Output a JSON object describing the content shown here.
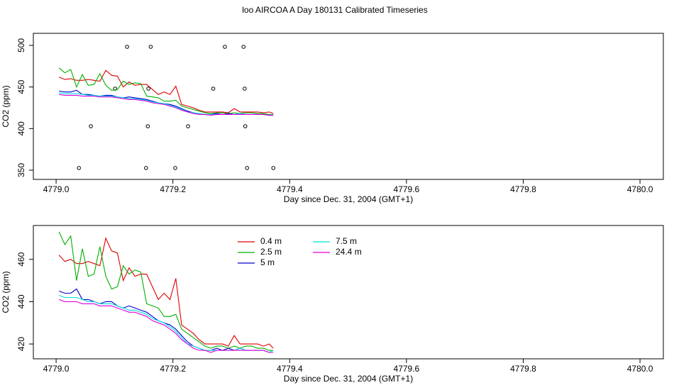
{
  "title": "loo AIRCOA A  Day 180131  Calibrated Timeseries",
  "chart_data": [
    {
      "type": "line",
      "xlabel": "Day since Dec. 31, 2004 (GMT+1)",
      "ylabel": "CO2 (ppm)",
      "xlim": [
        4778.961,
        4780.04
      ],
      "ylim": [
        338.9,
        514.5
      ],
      "xticks": [
        {
          "value": 4779.0,
          "label": "4779.0"
        },
        {
          "value": 4779.2,
          "label": "4779.2"
        },
        {
          "value": 4779.4,
          "label": "4779.4"
        },
        {
          "value": 4779.6,
          "label": "4779.6"
        },
        {
          "value": 4779.8,
          "label": "4779.8"
        },
        {
          "value": 4780.0,
          "label": "4780.0"
        }
      ],
      "yticks": [
        350,
        400,
        450,
        500
      ],
      "x": [
        4779.005,
        4779.015,
        4779.025,
        4779.035,
        4779.045,
        4779.055,
        4779.065,
        4779.075,
        4779.085,
        4779.095,
        4779.105,
        4779.115,
        4779.125,
        4779.135,
        4779.145,
        4779.155,
        4779.165,
        4779.175,
        4779.185,
        4779.195,
        4779.205,
        4779.215,
        4779.225,
        4779.235,
        4779.245,
        4779.255,
        4779.265,
        4779.275,
        4779.285,
        4779.295,
        4779.305,
        4779.315,
        4779.325,
        4779.335,
        4779.345,
        4779.355,
        4779.365,
        4779.372
      ],
      "series": [
        {
          "color": "#e00000",
          "values": [
            462,
            459,
            460,
            458,
            458,
            459,
            458,
            457,
            470,
            464,
            463,
            450,
            456,
            452,
            453,
            453,
            447,
            441,
            444,
            441,
            451,
            429,
            427,
            425,
            422,
            420,
            420,
            420,
            420,
            419,
            424,
            420,
            420,
            420,
            420,
            419,
            420,
            418
          ]
        },
        {
          "color": "#00b000",
          "values": [
            473,
            467,
            471,
            450,
            465,
            452,
            453,
            466,
            452,
            446,
            447,
            457,
            453,
            455,
            454,
            439,
            438,
            437,
            433,
            433,
            434,
            427,
            425,
            423,
            421,
            419,
            418,
            419,
            419,
            418,
            419,
            418,
            419,
            419,
            418,
            418,
            417,
            417
          ]
        },
        {
          "color": "#0000cc",
          "values": [
            445,
            444,
            444,
            446,
            441,
            441,
            440,
            439,
            440,
            440,
            438,
            437,
            438,
            437,
            436,
            435,
            433,
            431,
            430,
            429,
            427,
            424,
            421,
            419,
            418,
            417,
            417,
            418,
            417,
            418,
            417,
            418,
            417,
            417,
            417,
            417,
            416,
            416
          ]
        },
        {
          "color": "#00e0e0",
          "values": [
            443,
            442,
            442,
            442,
            441,
            440,
            440,
            439,
            439,
            439,
            438,
            437,
            436,
            436,
            435,
            434,
            432,
            431,
            430,
            428,
            426,
            423,
            420,
            419,
            418,
            417,
            417,
            417,
            417,
            417,
            417,
            418,
            417,
            417,
            417,
            417,
            416,
            417
          ]
        },
        {
          "color": "#e000e0",
          "values": [
            441,
            440,
            440,
            440,
            439,
            439,
            439,
            438,
            438,
            438,
            437,
            436,
            435,
            435,
            434,
            433,
            431,
            430,
            429,
            427,
            425,
            422,
            420,
            418,
            417,
            417,
            416,
            417,
            417,
            417,
            417,
            417,
            417,
            417,
            417,
            417,
            416,
            416
          ]
        }
      ],
      "points": {
        "x": [
          4779.039,
          4779.0595,
          4779.101,
          4779.1215,
          4779.154,
          4779.157,
          4779.158,
          4779.162,
          4779.204,
          4779.226,
          4779.269,
          4779.289,
          4779.321,
          4779.323,
          4779.324,
          4779.327,
          4779.372
        ],
        "y": [
          352.6,
          402.8,
          448,
          498.3,
          352.6,
          402.8,
          448,
          498.3,
          352.6,
          402.8,
          448,
          498.3,
          498.3,
          448,
          402.8,
          352.6,
          352.6
        ]
      }
    },
    {
      "type": "line",
      "xlabel": "Day since Dec. 31, 2004 (GMT+1)",
      "ylabel": "CO2 (ppm)",
      "xlim": [
        4778.961,
        4780.04
      ],
      "ylim": [
        413,
        476
      ],
      "xticks": [
        {
          "value": 4779.0,
          "label": "4779.0"
        },
        {
          "value": 4779.2,
          "label": "4779.2"
        },
        {
          "value": 4779.4,
          "label": "4779.4"
        },
        {
          "value": 4779.6,
          "label": "4779.6"
        },
        {
          "value": 4779.8,
          "label": "4779.8"
        },
        {
          "value": 4780.0,
          "label": "4780.0"
        }
      ],
      "yticks": [
        420,
        440,
        460
      ],
      "legend": "top-left",
      "x": [
        4779.005,
        4779.015,
        4779.025,
        4779.035,
        4779.045,
        4779.055,
        4779.065,
        4779.075,
        4779.085,
        4779.095,
        4779.105,
        4779.115,
        4779.125,
        4779.135,
        4779.145,
        4779.155,
        4779.165,
        4779.175,
        4779.185,
        4779.195,
        4779.205,
        4779.215,
        4779.225,
        4779.235,
        4779.245,
        4779.255,
        4779.265,
        4779.275,
        4779.285,
        4779.295,
        4779.305,
        4779.315,
        4779.325,
        4779.335,
        4779.345,
        4779.355,
        4779.365,
        4779.372
      ],
      "series": [
        {
          "name": "0.4 m",
          "color": "#e00000",
          "values": [
            462,
            459,
            460,
            458,
            458,
            459,
            458,
            457,
            470,
            464,
            463,
            450,
            456,
            452,
            453,
            453,
            447,
            441,
            444,
            441,
            451,
            429,
            427,
            425,
            422,
            420,
            420,
            420,
            420,
            419,
            424,
            420,
            420,
            420,
            420,
            419,
            420,
            418
          ]
        },
        {
          "name": "2.5 m",
          "color": "#00b000",
          "values": [
            473,
            467,
            471,
            450,
            465,
            452,
            453,
            466,
            452,
            446,
            447,
            457,
            453,
            455,
            454,
            439,
            438,
            437,
            433,
            433,
            434,
            427,
            425,
            423,
            421,
            419,
            418,
            419,
            419,
            418,
            419,
            418,
            419,
            419,
            418,
            418,
            417,
            417
          ]
        },
        {
          "name": "5 m",
          "color": "#0000cc",
          "values": [
            445,
            444,
            444,
            446,
            441,
            441,
            440,
            439,
            440,
            440,
            438,
            437,
            438,
            437,
            436,
            435,
            433,
            431,
            430,
            429,
            427,
            424,
            421,
            419,
            418,
            417,
            417,
            418,
            417,
            418,
            417,
            418,
            417,
            417,
            417,
            417,
            416,
            416
          ]
        },
        {
          "name": "7.5 m",
          "color": "#00e0e0",
          "values": [
            443,
            442,
            442,
            442,
            441,
            440,
            440,
            439,
            439,
            439,
            438,
            437,
            436,
            436,
            435,
            434,
            432,
            431,
            430,
            428,
            426,
            423,
            420,
            419,
            418,
            417,
            417,
            417,
            417,
            417,
            417,
            418,
            417,
            417,
            417,
            417,
            416,
            417
          ]
        },
        {
          "name": "24.4 m",
          "color": "#e000e0",
          "values": [
            441,
            440,
            440,
            440,
            439,
            439,
            439,
            438,
            438,
            438,
            437,
            436,
            435,
            435,
            434,
            433,
            431,
            430,
            429,
            427,
            425,
            422,
            420,
            418,
            417,
            417,
            416,
            417,
            417,
            417,
            417,
            417,
            417,
            417,
            417,
            417,
            416,
            416
          ]
        }
      ]
    }
  ]
}
